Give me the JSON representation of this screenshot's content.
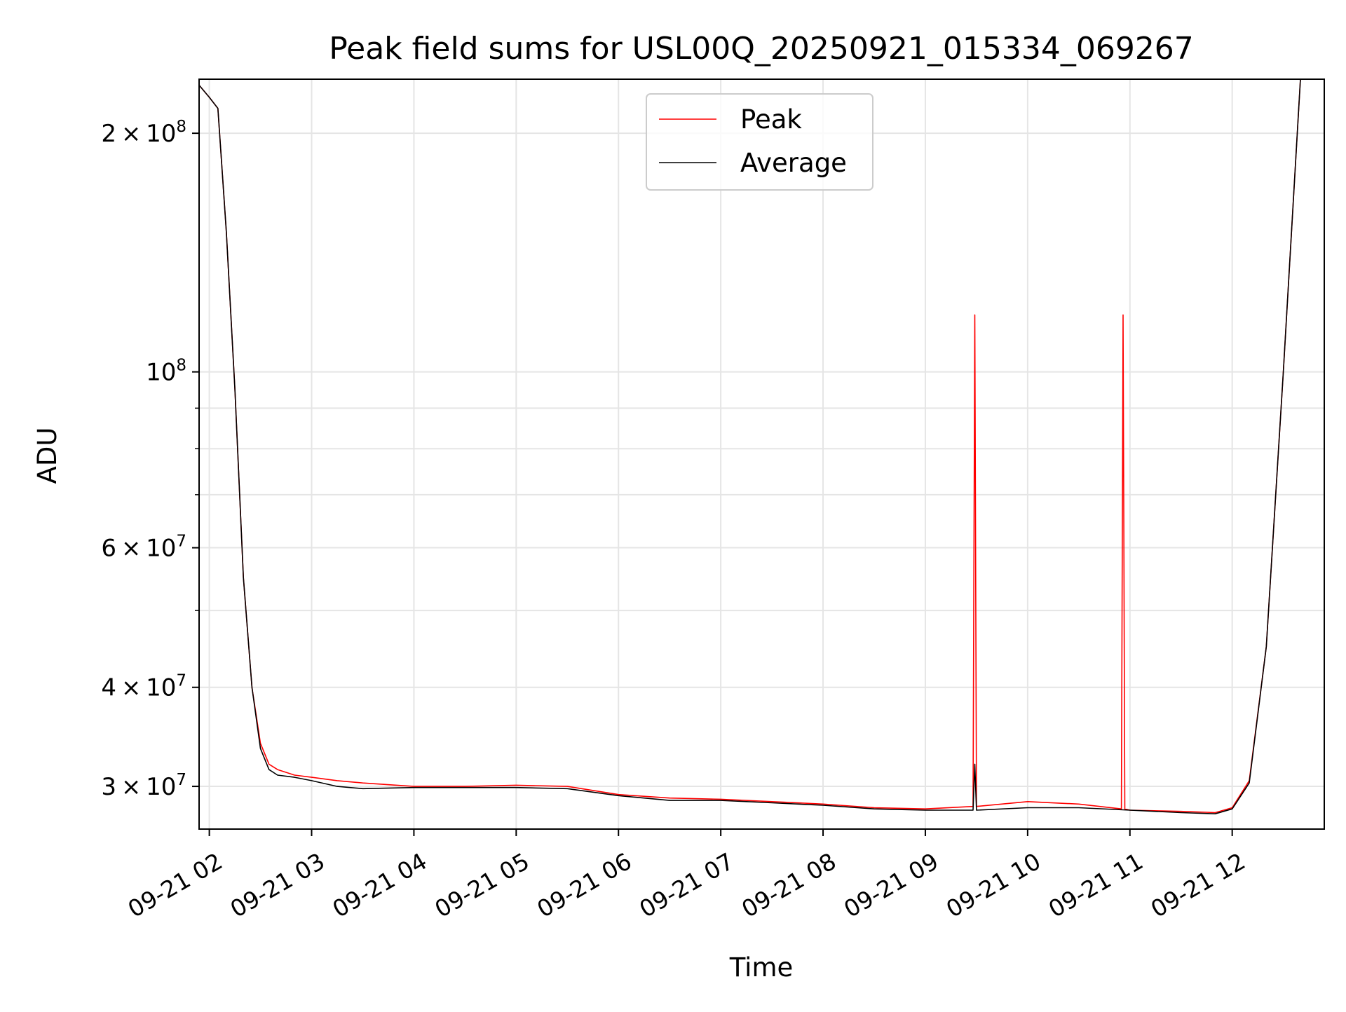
{
  "chart_data": {
    "type": "line",
    "title": "Peak field sums for USL00Q_20250921_015334_069267",
    "xlabel": "Time",
    "ylabel": "ADU",
    "x_tick_labels": [
      "09-21 02",
      "09-21 03",
      "09-21 04",
      "09-21 05",
      "09-21 06",
      "09-21 07",
      "09-21 08",
      "09-21 09",
      "09-21 10",
      "09-21 11",
      "09-21 12"
    ],
    "x_ticks": [
      "2025-09-21 02:00",
      "2025-09-21 03:00",
      "2025-09-21 04:00",
      "2025-09-21 05:00",
      "2025-09-21 06:00",
      "2025-09-21 07:00",
      "2025-09-21 08:00",
      "2025-09-21 09:00",
      "2025-09-21 10:00",
      "2025-09-21 11:00",
      "2025-09-21 12:00"
    ],
    "xlim": [
      "2025-09-21 01:54",
      "2025-09-21 12:54"
    ],
    "yscale": "log",
    "ylim": [
      26500000,
      234000000
    ],
    "y_major_ticks": [
      {
        "value": 30000000,
        "base": "3",
        "sup": "7"
      },
      {
        "value": 40000000,
        "base": "4",
        "sup": "7"
      },
      {
        "value": 60000000,
        "base": "6",
        "sup": "7"
      },
      {
        "value": 100000000,
        "base": "",
        "sup": "8"
      },
      {
        "value": 200000000,
        "base": "2",
        "sup": "8"
      }
    ],
    "y_minor_ticks": [
      50000000,
      70000000,
      80000000,
      90000000
    ],
    "grid": true,
    "legend": {
      "position": "top-center",
      "entries": [
        "Peak",
        "Average"
      ]
    },
    "series": [
      {
        "name": "Peak",
        "color": "#ff0000",
        "x": [
          "2025-09-21 01:54",
          "2025-09-21 02:00",
          "2025-09-21 02:05",
          "2025-09-21 02:10",
          "2025-09-21 02:15",
          "2025-09-21 02:20",
          "2025-09-21 02:25",
          "2025-09-21 02:30",
          "2025-09-21 02:35",
          "2025-09-21 02:40",
          "2025-09-21 02:50",
          "2025-09-21 03:00",
          "2025-09-21 03:15",
          "2025-09-21 03:30",
          "2025-09-21 04:00",
          "2025-09-21 04:30",
          "2025-09-21 05:00",
          "2025-09-21 05:30",
          "2025-09-21 06:00",
          "2025-09-21 06:30",
          "2025-09-21 07:00",
          "2025-09-21 07:30",
          "2025-09-21 08:00",
          "2025-09-21 08:30",
          "2025-09-21 09:00",
          "2025-09-21 09:28",
          "2025-09-21 09:29",
          "2025-09-21 09:30",
          "2025-09-21 10:00",
          "2025-09-21 10:30",
          "2025-09-21 10:55",
          "2025-09-21 10:56",
          "2025-09-21 10:57",
          "2025-09-21 11:00",
          "2025-09-21 11:30",
          "2025-09-21 11:50",
          "2025-09-21 12:00",
          "2025-09-21 12:10",
          "2025-09-21 12:20",
          "2025-09-21 12:30",
          "2025-09-21 12:40"
        ],
        "y": [
          230000000,
          222000000,
          215000000,
          150000000,
          95000000,
          55000000,
          40000000,
          34000000,
          32000000,
          31500000,
          31000000,
          30800000,
          30500000,
          30300000,
          30000000,
          30000000,
          30100000,
          30000000,
          29300000,
          29000000,
          28900000,
          28700000,
          28500000,
          28200000,
          28100000,
          28300000,
          118000000,
          28300000,
          28700000,
          28500000,
          28100000,
          118000000,
          28100000,
          28000000,
          27900000,
          27800000,
          28200000,
          30500000,
          45000000,
          100000000,
          234000000
        ]
      },
      {
        "name": "Average",
        "color": "#000000",
        "x": [
          "2025-09-21 01:54",
          "2025-09-21 02:00",
          "2025-09-21 02:05",
          "2025-09-21 02:10",
          "2025-09-21 02:15",
          "2025-09-21 02:20",
          "2025-09-21 02:25",
          "2025-09-21 02:30",
          "2025-09-21 02:35",
          "2025-09-21 02:40",
          "2025-09-21 02:50",
          "2025-09-21 03:00",
          "2025-09-21 03:15",
          "2025-09-21 03:30",
          "2025-09-21 04:00",
          "2025-09-21 04:30",
          "2025-09-21 05:00",
          "2025-09-21 05:30",
          "2025-09-21 06:00",
          "2025-09-21 06:30",
          "2025-09-21 07:00",
          "2025-09-21 07:30",
          "2025-09-21 08:00",
          "2025-09-21 08:30",
          "2025-09-21 09:00",
          "2025-09-21 09:28",
          "2025-09-21 09:29",
          "2025-09-21 09:30",
          "2025-09-21 10:00",
          "2025-09-21 10:30",
          "2025-09-21 11:00",
          "2025-09-21 11:30",
          "2025-09-21 11:50",
          "2025-09-21 12:00",
          "2025-09-21 12:10",
          "2025-09-21 12:20",
          "2025-09-21 12:30",
          "2025-09-21 12:40"
        ],
        "y": [
          230000000,
          222000000,
          215000000,
          150000000,
          95000000,
          55000000,
          40000000,
          33500000,
          31500000,
          31000000,
          30800000,
          30500000,
          30000000,
          29800000,
          29900000,
          29900000,
          29900000,
          29800000,
          29200000,
          28800000,
          28800000,
          28600000,
          28400000,
          28100000,
          28000000,
          28000000,
          32000000,
          28000000,
          28200000,
          28200000,
          28000000,
          27800000,
          27700000,
          28100000,
          30300000,
          45000000,
          100000000,
          234000000
        ]
      }
    ]
  }
}
